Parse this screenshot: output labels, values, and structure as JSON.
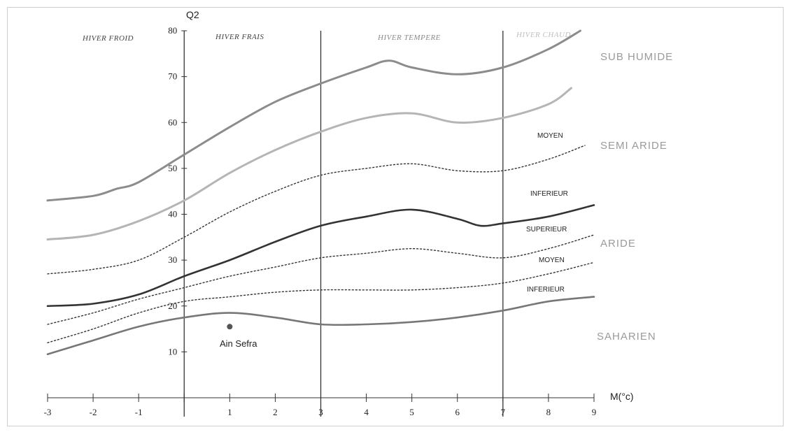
{
  "chart_data": {
    "type": "line",
    "xlabel": "M(°c)",
    "ylabel": "Q2",
    "xlim": [
      -3,
      9
    ],
    "ylim": [
      0,
      80
    ],
    "x_ticks": [
      "-3",
      "-2",
      "-1",
      "1",
      "2",
      "3",
      "4",
      "5",
      "6",
      "7",
      "8",
      "9"
    ],
    "y_ticks": [
      "10",
      "20",
      "30",
      "40",
      "50",
      "60",
      "70",
      "80"
    ],
    "winter_zones": [
      {
        "label": "HIVER FROID",
        "color": "#444444"
      },
      {
        "label": "HIVER FRAIS",
        "color": "#444444"
      },
      {
        "label": "HIVER TEMPERE",
        "color": "#8a8a8a"
      },
      {
        "label": "HIVER CHAUD",
        "color": "#c0c0c0"
      }
    ],
    "zone_boundaries": [
      0,
      3,
      7
    ],
    "climate_zones": [
      {
        "label": "SUB HUMIDE"
      },
      {
        "label": "SEMI ARIDE"
      },
      {
        "label": "ARIDE"
      },
      {
        "label": "SAHARIEN"
      }
    ],
    "sub_zones": [
      {
        "label": "MOYEN"
      },
      {
        "label": "INFERIEUR"
      },
      {
        "label": "SUPERIEUR"
      },
      {
        "label": "MOYEN"
      },
      {
        "label": "INFERIEUR"
      }
    ],
    "series": [
      {
        "style": "solid",
        "color": "#8c8c8c",
        "width": 3,
        "x": [
          -3,
          -2,
          -1.5,
          -1,
          0,
          1,
          2,
          3,
          4,
          4.5,
          5,
          6,
          7,
          8,
          8.7
        ],
        "y": [
          43,
          44,
          45.5,
          47,
          53,
          59,
          64.5,
          68.5,
          72,
          73.5,
          72,
          70.5,
          72,
          76,
          80
        ]
      },
      {
        "style": "solid",
        "color": "#b5b5b5",
        "width": 3,
        "x": [
          -3,
          -2,
          -1,
          0,
          1,
          2,
          3,
          4,
          5,
          6,
          7,
          8,
          8.5
        ],
        "y": [
          34.5,
          35.5,
          38.5,
          43,
          49,
          54,
          58,
          61,
          62,
          60,
          61,
          64,
          67.5
        ]
      },
      {
        "style": "dotted",
        "color": "#333333",
        "width": 1.4,
        "x": [
          -3,
          -2,
          -1,
          0,
          1,
          2,
          3,
          4,
          5,
          6,
          7,
          8,
          8.8
        ],
        "y": [
          27,
          28,
          30,
          35,
          40.5,
          45,
          48.5,
          50,
          51,
          49.5,
          49.5,
          52,
          55
        ]
      },
      {
        "style": "solid",
        "color": "#333333",
        "width": 2.6,
        "x": [
          -3,
          -2,
          -1,
          0,
          1,
          2,
          3,
          4,
          5,
          6,
          6.5,
          7,
          8,
          9
        ],
        "y": [
          20,
          20.5,
          22.5,
          26.5,
          30,
          34,
          37.5,
          39.5,
          41,
          39,
          37.5,
          38,
          39.5,
          42
        ]
      },
      {
        "style": "dotted",
        "color": "#333333",
        "width": 1.4,
        "x": [
          -3,
          -2,
          -1,
          0,
          1,
          2,
          3,
          4,
          5,
          6,
          7,
          8,
          9
        ],
        "y": [
          16,
          18.5,
          21.5,
          24,
          26.5,
          28.5,
          30.5,
          31.5,
          32.5,
          31.5,
          30.5,
          32.5,
          35.5
        ]
      },
      {
        "style": "dotted",
        "color": "#333333",
        "width": 1.4,
        "x": [
          -3,
          -2,
          -1,
          0,
          1,
          2,
          3,
          4,
          5,
          6,
          7,
          8,
          9
        ],
        "y": [
          12,
          15,
          18.5,
          21,
          22,
          23,
          23.5,
          23.5,
          23.5,
          24,
          25,
          27,
          29.5
        ]
      },
      {
        "style": "solid",
        "color": "#777777",
        "width": 2.6,
        "x": [
          -3,
          -2,
          -1,
          0,
          1,
          2,
          3,
          4,
          5,
          6,
          7,
          8,
          9
        ],
        "y": [
          9.5,
          12.5,
          15.5,
          17.5,
          18.5,
          17.5,
          16,
          16,
          16.5,
          17.5,
          19,
          21,
          22
        ]
      }
    ],
    "points": [
      {
        "label": "Ain Sefra",
        "x": 1,
        "y": 15.5
      }
    ]
  }
}
